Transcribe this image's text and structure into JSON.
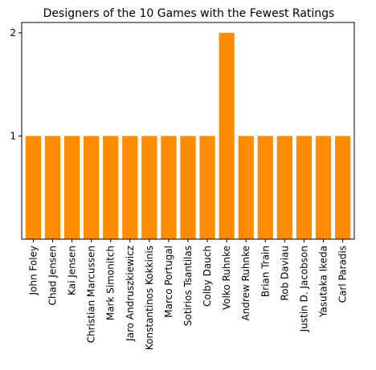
{
  "chart_data": {
    "type": "bar",
    "title": "Designers of the 10 Games with the Fewest Ratings",
    "xlabel": "",
    "ylabel": "",
    "categories": [
      "John Foley",
      "Chad Jensen",
      "Kai Jensen",
      "Christian Marcussen",
      "Mark Simonitch",
      "Jaro Andruszkiewicz",
      "Konstantinos Kokkinis",
      "Marco Portugal",
      "Sotirios Tsantilas",
      "Colby Dauch",
      "Volko Ruhnke",
      "Andrew Ruhnke",
      "Brian Train",
      "Rob Daviau",
      "Justin D. Jacobson",
      "Yasutaka Ikeda",
      "Carl Paradis"
    ],
    "values": [
      1,
      1,
      1,
      1,
      1,
      1,
      1,
      1,
      1,
      1,
      2,
      1,
      1,
      1,
      1,
      1,
      1
    ],
    "yticks": [
      1,
      2
    ],
    "ylim": [
      0,
      2.1
    ],
    "grid": false,
    "legend": "none",
    "colors": {
      "bar": "#ff8c00",
      "axis": "#000000"
    }
  }
}
